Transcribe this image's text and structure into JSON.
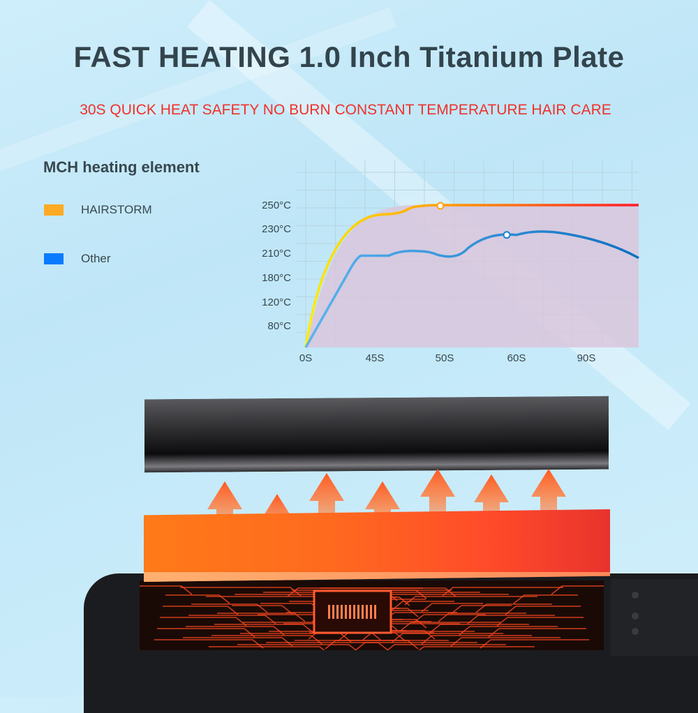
{
  "header": {
    "title": "FAST HEATING 1.0 Inch  Titanium Plate",
    "subtitle": "30S QUICK HEAT SAFETY NO BURN CONSTANT TEMPERATURE HAIR CARE"
  },
  "legend": {
    "title": "MCH heating element",
    "items": [
      {
        "label": "HAIRSTORM",
        "color": "#ffaa22"
      },
      {
        "label": "Other",
        "color": "#0a7bff"
      }
    ]
  },
  "chart_data": {
    "type": "line",
    "categories": [
      "0S",
      "45S",
      "50S",
      "60S",
      "90S"
    ],
    "y_tick_labels": [
      "250°C",
      "230°C",
      "210°C",
      "180°C",
      "120°C",
      "80°C"
    ],
    "y_tick_values": [
      250,
      230,
      210,
      180,
      120,
      80
    ],
    "grid": true,
    "series": [
      {
        "name": "HAIRSTORM",
        "values": [
          0,
          245,
          250,
          250,
          250
        ],
        "color_start": "#ffee00",
        "color_end": "#ff1a2a",
        "marker_at": "50S"
      },
      {
        "name": "Other",
        "values": [
          0,
          207,
          208,
          225,
          225
        ],
        "color_start": "#5ab4f0",
        "color_end": "#1070c0",
        "marker_at": "60S"
      }
    ],
    "area_fill": "#d9c6dc"
  }
}
